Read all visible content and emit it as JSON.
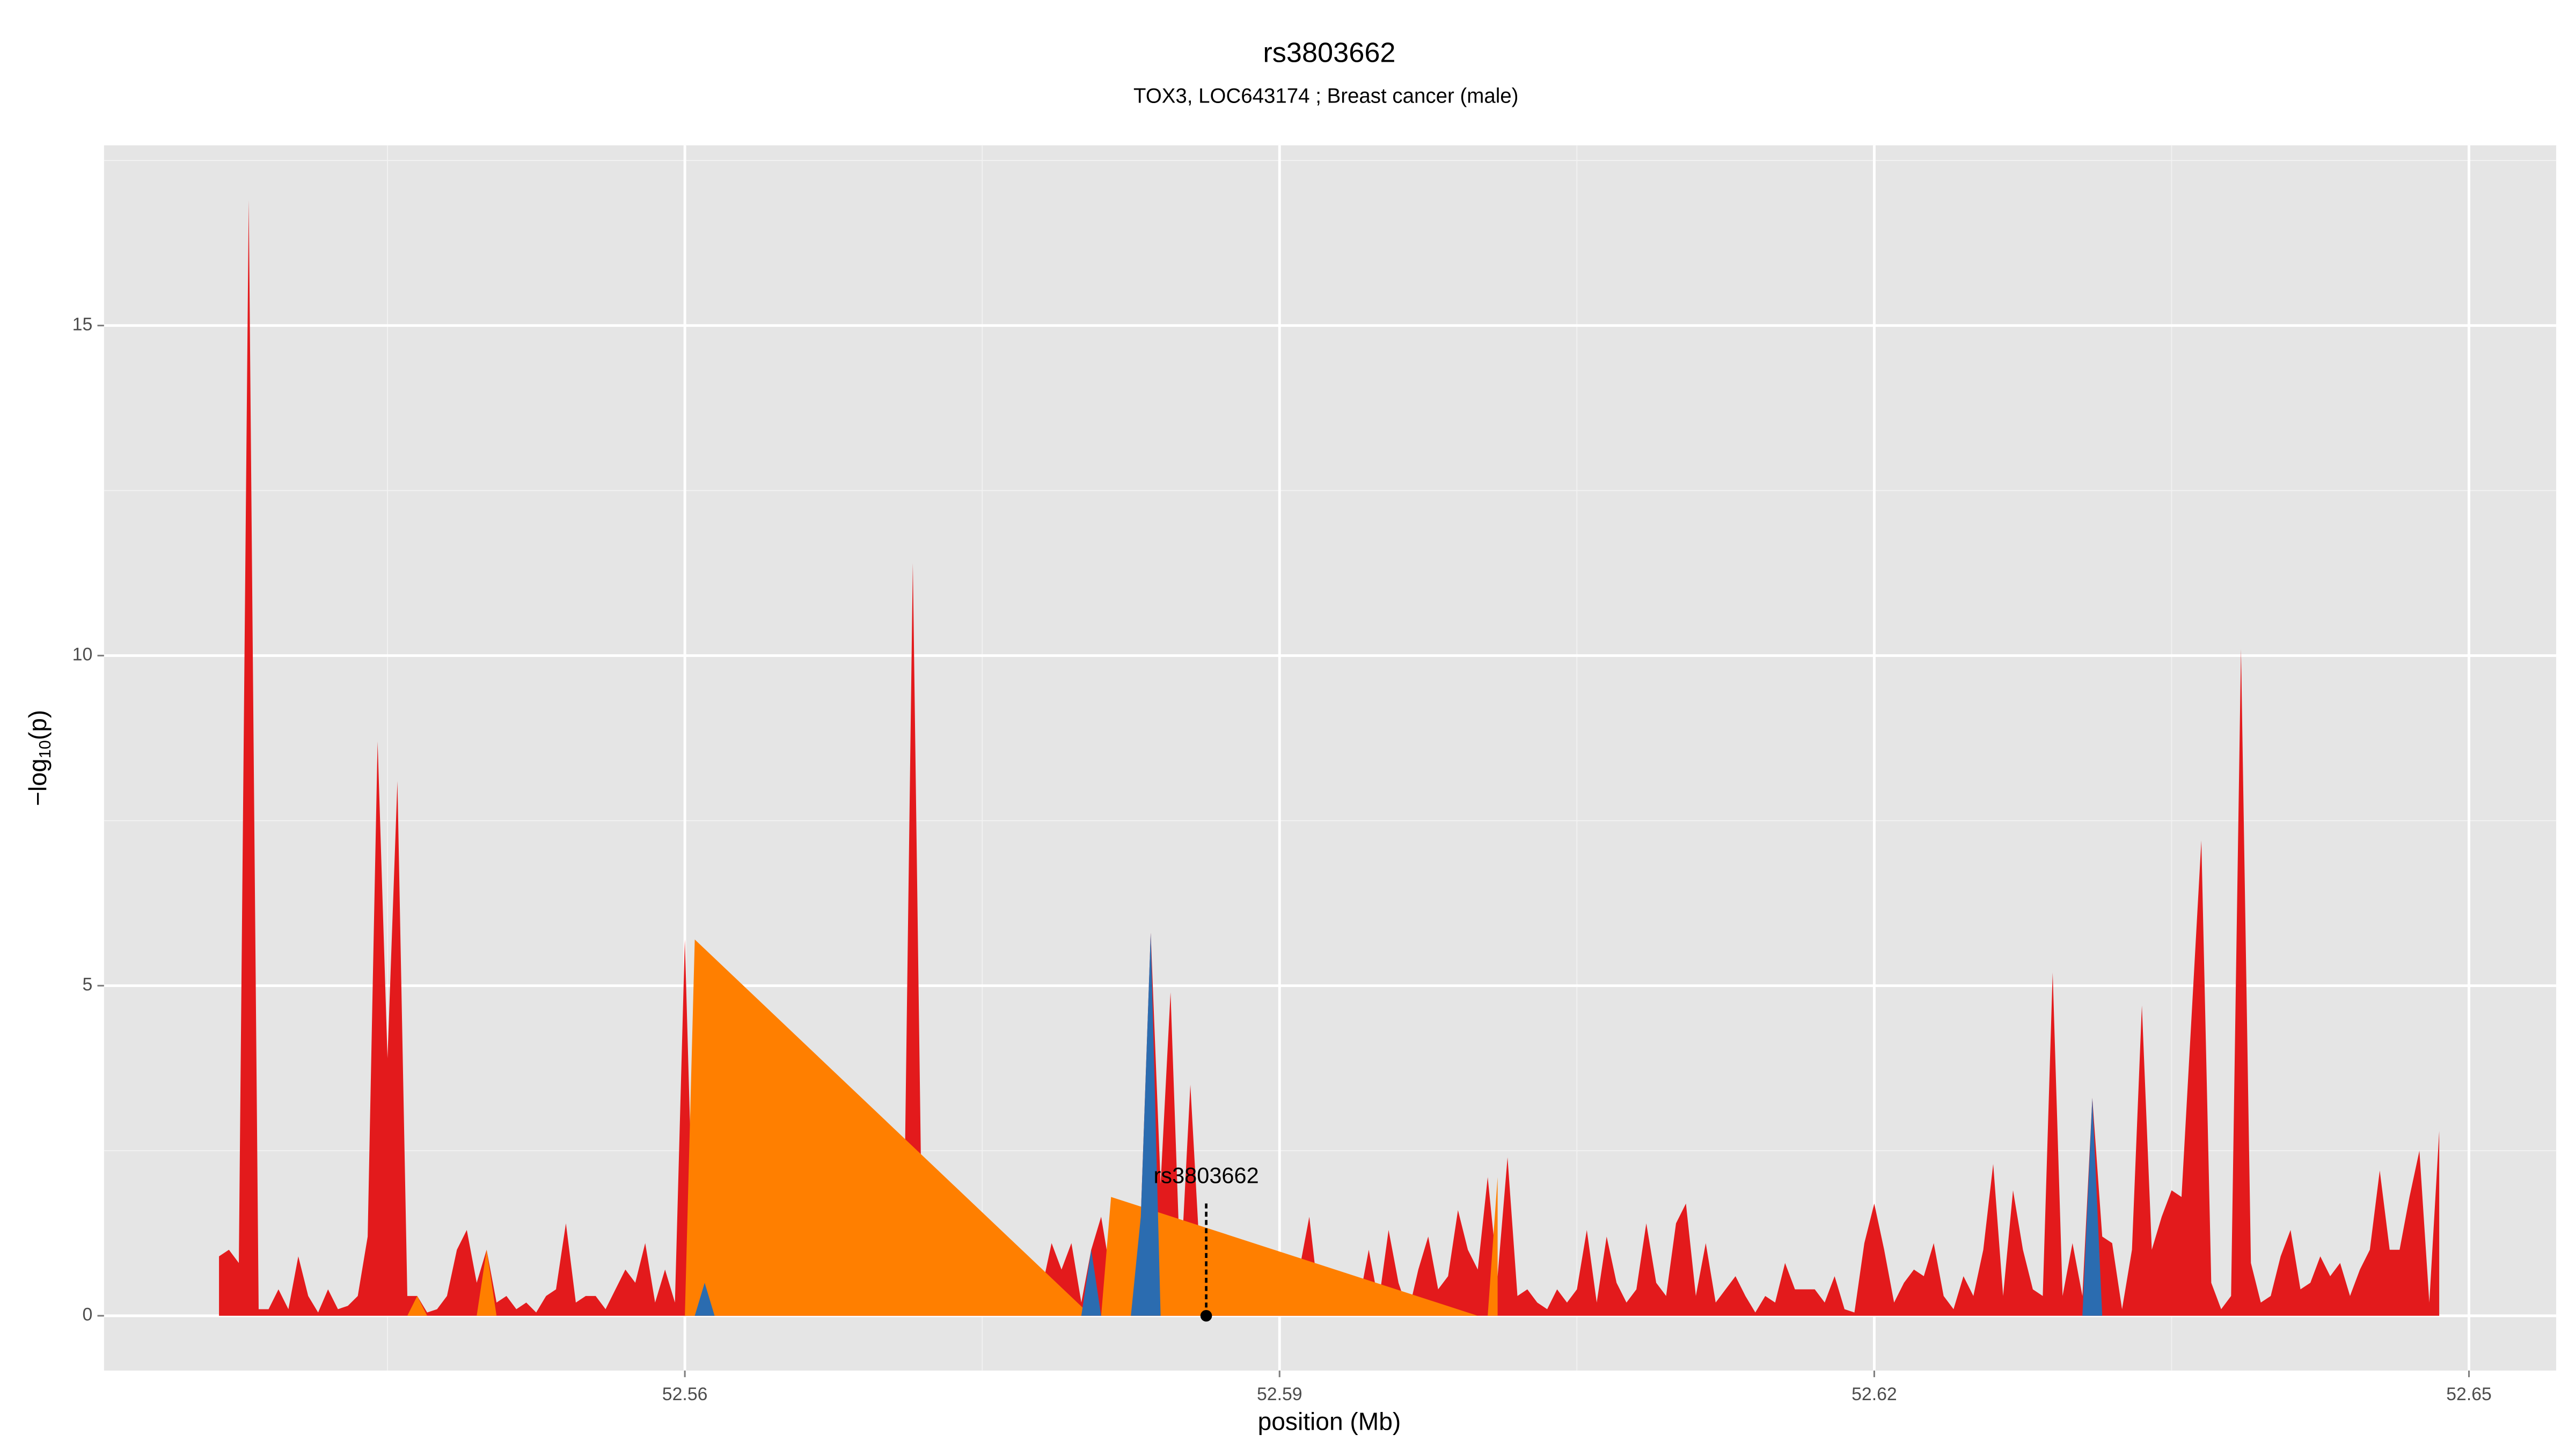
{
  "chart_data": {
    "type": "area",
    "title": "rs3803662",
    "subtitle": "TOX3, LOC643174 ; Breast cancer (male)",
    "xlabel": "position (Mb)",
    "ylabel": [
      "−log",
      "10",
      "(p)"
    ],
    "xlim": [
      52.5307,
      52.6544
    ],
    "ylim": [
      -0.83,
      17.73
    ],
    "xticks": [
      52.56,
      52.59,
      52.62,
      52.65
    ],
    "yticks": [
      0,
      5,
      10,
      15
    ],
    "x_minor_ticks": [
      52.545,
      52.575,
      52.605,
      52.635
    ],
    "y_minor_ticks": [
      2.5,
      7.5,
      12.5,
      17.5
    ],
    "grid": true,
    "x": [
      52.5365,
      52.537,
      52.5375,
      52.538,
      52.5385,
      52.539,
      52.5395,
      52.54,
      52.5405,
      52.541,
      52.5415,
      52.542,
      52.5425,
      52.543,
      52.5435,
      52.544,
      52.5445,
      52.545,
      52.5455,
      52.546,
      52.5465,
      52.547,
      52.5475,
      52.548,
      52.5485,
      52.549,
      52.5495,
      52.55,
      52.5505,
      52.551,
      52.5515,
      52.552,
      52.5525,
      52.553,
      52.5535,
      52.554,
      52.5545,
      52.555,
      52.5555,
      52.556,
      52.5565,
      52.557,
      52.5575,
      52.558,
      52.5585,
      52.559,
      52.5595,
      52.56,
      52.5605,
      52.561,
      52.5615,
      52.562,
      52.5625,
      52.563,
      52.5635,
      52.564,
      52.5645,
      52.565,
      52.5655,
      52.566,
      52.5665,
      52.567,
      52.5675,
      52.568,
      52.5685,
      52.569,
      52.5695,
      52.57,
      52.5705,
      52.571,
      52.5715,
      52.572,
      52.5725,
      52.573,
      52.5735,
      52.574,
      52.5745,
      52.575,
      52.5755,
      52.576,
      52.5765,
      52.577,
      52.5775,
      52.578,
      52.5785,
      52.579,
      52.5795,
      52.58,
      52.5805,
      52.581,
      52.5815,
      52.582,
      52.5825,
      52.583,
      52.5835,
      52.584,
      52.5845,
      52.585,
      52.5855,
      52.586,
      52.5865,
      52.587,
      52.5875,
      52.588,
      52.5885,
      52.589,
      52.5895,
      52.59,
      52.5905,
      52.591,
      52.5915,
      52.592,
      52.5925,
      52.593,
      52.5935,
      52.594,
      52.5945,
      52.595,
      52.5955,
      52.596,
      52.5965,
      52.597,
      52.5975,
      52.598,
      52.5985,
      52.599,
      52.5995,
      52.6,
      52.6005,
      52.601,
      52.6015,
      52.602,
      52.6025,
      52.603,
      52.6035,
      52.604,
      52.6045,
      52.605,
      52.6055,
      52.606,
      52.6065,
      52.607,
      52.6075,
      52.608,
      52.6085,
      52.609,
      52.6095,
      52.61,
      52.6105,
      52.611,
      52.6115,
      52.612,
      52.6125,
      52.613,
      52.6135,
      52.614,
      52.6145,
      52.615,
      52.6155,
      52.616,
      52.6165,
      52.617,
      52.6175,
      52.618,
      52.6185,
      52.619,
      52.6195,
      52.62,
      52.6205,
      52.621,
      52.6215,
      52.622,
      52.6225,
      52.623,
      52.6235,
      52.624,
      52.6245,
      52.625,
      52.6255,
      52.626,
      52.6265,
      52.627,
      52.6275,
      52.628,
      52.6285,
      52.629,
      52.6295,
      52.63,
      52.6305,
      52.631,
      52.6315,
      52.632,
      52.6325,
      52.633,
      52.6335,
      52.634,
      52.6345,
      52.635,
      52.6355,
      52.636,
      52.6365,
      52.637,
      52.6375,
      52.638,
      52.6385,
      52.639,
      52.6395,
      52.64,
      52.6405,
      52.641,
      52.6415,
      52.642,
      52.6425,
      52.643,
      52.6435,
      52.644,
      52.6445,
      52.645,
      52.6455,
      52.646,
      52.6465,
      52.647,
      52.6475,
      52.648,
      52.6485
    ],
    "series": [
      {
        "color": "#e31a1c",
        "values": [
          0.9,
          1.0,
          0.8,
          16.9,
          0.1,
          0.1,
          0.4,
          0.1,
          0.9,
          0.3,
          0.05,
          0.4,
          0.1,
          0.15,
          0.3,
          1.2,
          8.7,
          3.9,
          8.1,
          0.3,
          0.3,
          0.05,
          0.1,
          0.3,
          1.0,
          1.3,
          0.5,
          1.0,
          0.2,
          0.3,
          0.1,
          0.2,
          0.05,
          0.3,
          0.4,
          1.4,
          0.2,
          0.3,
          0.3,
          0.1,
          0.4,
          0.7,
          0.5,
          1.1,
          0.2,
          0.7,
          0.2,
          5.7,
          0.3,
          0.2,
          0.3,
          0.3,
          2.2,
          1.2,
          0.8,
          0.3,
          0.3,
          1.5,
          3.4,
          0.7,
          0.2,
          0.2,
          0.3,
          0.3,
          0.5,
          0.2,
          0.1,
          0.3,
          0.3,
          0.1,
          11.4,
          0.3,
          0.8,
          0.2,
          0.3,
          0.05,
          0.3,
          0.5,
          0.5,
          0.7,
          0.9,
          0.4,
          0.5,
          0.4,
          1.1,
          0.7,
          1.1,
          0.2,
          1.0,
          1.5,
          0.6,
          0.3,
          0.8,
          1.5,
          5.8,
          2.0,
          4.9,
          0.6,
          3.5,
          0.8,
          1.1,
          0.6,
          0.1,
          0.7,
          0.1,
          0.5,
          0.05,
          0.9,
          0.2,
          0.7,
          1.5,
          0.2,
          0.3,
          0.1,
          0.6,
          0.2,
          1.0,
          0.2,
          1.3,
          0.5,
          0.05,
          0.7,
          1.2,
          0.4,
          0.6,
          1.6,
          1.0,
          0.7,
          2.1,
          0.6,
          2.4,
          0.3,
          0.4,
          0.2,
          0.1,
          0.4,
          0.2,
          0.4,
          1.3,
          0.2,
          1.2,
          0.5,
          0.2,
          0.4,
          1.4,
          0.5,
          0.3,
          1.4,
          1.7,
          0.3,
          1.1,
          0.2,
          0.4,
          0.6,
          0.3,
          0.05,
          0.3,
          0.2,
          0.8,
          0.4,
          0.4,
          0.4,
          0.2,
          0.6,
          0.1,
          0.05,
          1.1,
          1.7,
          1.0,
          0.2,
          0.5,
          0.7,
          0.6,
          1.1,
          0.3,
          0.1,
          0.6,
          0.3,
          1.0,
          2.3,
          0.3,
          1.9,
          1.0,
          0.4,
          0.3,
          5.2,
          0.3,
          1.1,
          0.3,
          3.3,
          1.2,
          1.1,
          0.1,
          1.0,
          4.7,
          1.0,
          1.5,
          1.9,
          1.8,
          4.5,
          7.2,
          0.5,
          0.1,
          0.3,
          10.1,
          0.8,
          0.2,
          0.3,
          0.9,
          1.3,
          0.4,
          0.5,
          0.9,
          0.6,
          0.8,
          0.3,
          0.7,
          1.0,
          2.2,
          1.0,
          1.0,
          1.8,
          2.5,
          0.2,
          2.8
        ]
      },
      {
        "color": "#ff7f00",
        "x": [
          52.546,
          52.5465,
          52.547,
          52.5475,
          52.5495,
          52.55,
          52.5505,
          52.5595,
          52.56,
          52.5605,
          52.5805,
          52.581,
          52.5815,
          52.6,
          52.6005,
          52.601
        ],
        "values": [
          0,
          0.3,
          0,
          null,
          0,
          1.0,
          0,
          null,
          0,
          5.7,
          0,
          0,
          1.8,
          0,
          0,
          2.1
        ]
      },
      {
        "color": "#2b6cb0",
        "x": [
          52.5605,
          52.561,
          52.5615,
          52.58,
          52.5805,
          52.581,
          52.5825,
          52.583,
          52.5835,
          52.584,
          52.6305,
          52.631,
          52.6315
        ],
        "values": [
          0,
          0.5,
          0,
          0,
          1.0,
          0,
          0,
          1.5,
          5.8,
          0,
          0,
          3.3,
          0
        ]
      }
    ],
    "annotations": [
      {
        "text": "rs3803662",
        "x": 52.5863,
        "y": 0
      }
    ]
  }
}
